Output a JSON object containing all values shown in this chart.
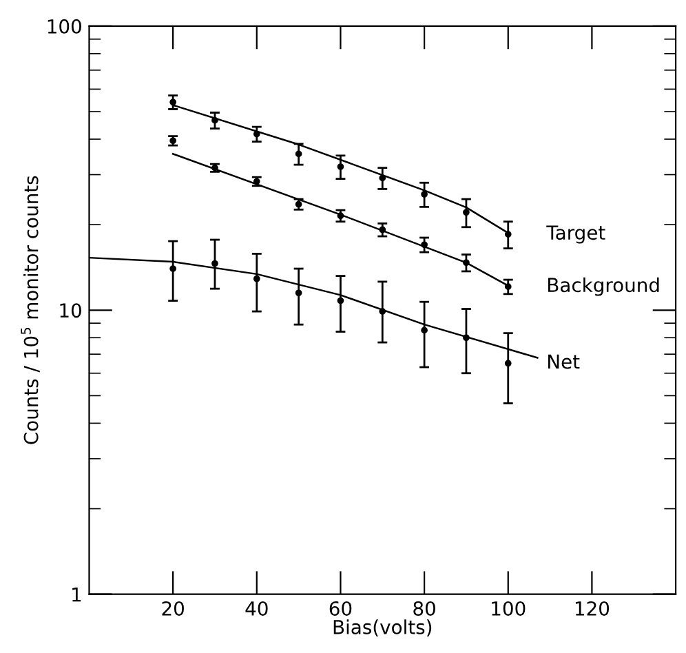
{
  "chart_data": {
    "type": "scatter",
    "xlabel": "Bias(volts)",
    "ylabel": "Counts / 10$^{5}$ monitor counts",
    "log": "y",
    "xlim": [
      0,
      140
    ],
    "ylim": [
      1,
      100
    ],
    "xticks": [
      20,
      40,
      60,
      80,
      100,
      120
    ],
    "yticks": [
      1,
      10,
      100
    ],
    "grid": false,
    "legend": false,
    "marker": "circle",
    "series": [
      {
        "name": "Target",
        "color": "#000000",
        "x": [
          20,
          30,
          40,
          50,
          60,
          70,
          80,
          90,
          100
        ],
        "values": [
          54,
          46.6,
          41.7,
          35.5,
          32,
          29.2,
          25.6,
          22.1,
          18.5
        ],
        "errors": [
          3,
          3,
          2.5,
          3,
          3,
          2.5,
          2.5,
          2.5,
          2
        ]
      },
      {
        "name": "Background",
        "color": "#000000",
        "x": [
          20,
          30,
          40,
          50,
          60,
          70,
          80,
          90,
          100
        ],
        "values": [
          39.5,
          31.7,
          28.4,
          23.6,
          21.5,
          19.2,
          17.0,
          14.7,
          12.1
        ],
        "errors": [
          1.5,
          1,
          1,
          1,
          1,
          1,
          1,
          1,
          0.7
        ]
      },
      {
        "name": "Net",
        "color": "#000000",
        "x": [
          20,
          30,
          40,
          50,
          60,
          70,
          80,
          90,
          100
        ],
        "values": [
          14.0,
          14.6,
          12.9,
          11.5,
          10.8,
          9.9,
          8.5,
          8.0,
          6.5
        ],
        "errors": [
          [
            10.8,
            17.5
          ],
          [
            11.9,
            17.7
          ],
          [
            9.9,
            15.8
          ],
          [
            8.9,
            14.0
          ],
          [
            8.4,
            13.2
          ],
          [
            7.7,
            12.6
          ],
          [
            6.3,
            10.7
          ],
          [
            6.0,
            10.1
          ],
          [
            4.7,
            8.3
          ]
        ]
      },
      {
        "type": "line",
        "marker": "none",
        "color": "#000000",
        "x": [
          20,
          50,
          80,
          90,
          100
        ],
        "values": [
          52.7,
          38.3,
          26.4,
          23,
          18.7
        ]
      },
      {
        "type": "line",
        "marker": "none",
        "color": "#000000",
        "x": [
          20,
          60,
          90,
          100
        ],
        "values": [
          35.5,
          21.7,
          14.7,
          12.2
        ]
      },
      {
        "type": "line",
        "marker": "none",
        "color": "#000000",
        "x": [
          0,
          20,
          40,
          60,
          80,
          107
        ],
        "values": [
          15.3,
          14.8,
          13.4,
          11.3,
          8.9,
          6.8
        ]
      }
    ]
  }
}
